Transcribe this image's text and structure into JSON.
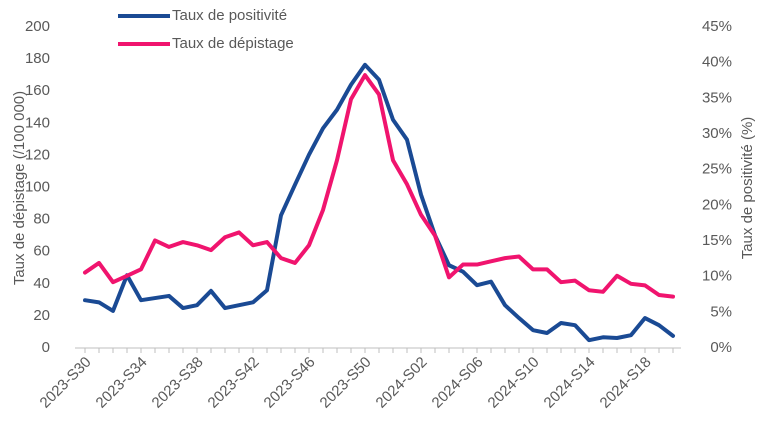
{
  "chart_data": {
    "type": "line",
    "y_label": "Taux de dépistage (/100 000)",
    "y2_label": "Taux de positivité (%)",
    "categories": [
      "2023-S30",
      null,
      null,
      null,
      "2023-S34",
      null,
      null,
      null,
      "2023-S38",
      null,
      null,
      null,
      "2023-S42",
      null,
      null,
      null,
      "2023-S46",
      null,
      null,
      null,
      "2023-S50",
      null,
      null,
      null,
      "2024-S02",
      null,
      null,
      null,
      "2024-S06",
      null,
      null,
      null,
      "2024-S10",
      null,
      null,
      null,
      "2024-S14",
      null,
      null,
      null,
      "2024-S18",
      null,
      null
    ],
    "series": [
      {
        "name": "Taux de positivité",
        "color": "#1a4a94",
        "axis": "y2",
        "values": [
          6.7,
          6.4,
          5.2,
          10.2,
          6.7,
          7.0,
          7.3,
          5.6,
          6.0,
          8.0,
          5.6,
          6.0,
          6.4,
          8.1,
          18.6,
          22.9,
          27.1,
          30.8,
          33.4,
          36.9,
          39.7,
          37.6,
          32.0,
          29.2,
          21.5,
          15.8,
          11.6,
          10.7,
          8.8,
          9.3,
          6.0,
          4.2,
          2.5,
          2.1,
          3.5,
          3.2,
          1.1,
          1.5,
          1.4,
          1.8,
          4.2,
          3.2,
          1.7
        ]
      },
      {
        "name": "Taux de dépistage",
        "color": "#f0146e",
        "values": [
          47,
          53,
          41,
          45,
          49,
          67,
          63,
          66,
          64,
          61,
          69,
          72,
          64,
          66,
          56,
          53,
          64,
          86,
          117,
          155,
          170,
          158,
          117,
          102,
          83,
          70,
          44,
          52,
          52,
          54,
          56,
          57,
          49,
          49,
          41,
          42,
          36,
          35,
          45,
          40,
          39,
          33,
          32
        ]
      }
    ],
    "ylim": [
      0,
      200
    ],
    "yticks": [
      0,
      20,
      40,
      60,
      80,
      100,
      120,
      140,
      160,
      180,
      200
    ],
    "y2lim": [
      0,
      45
    ],
    "y2ticks": [
      {
        "value": 0,
        "label": "0%"
      },
      {
        "value": 5,
        "label": "5%"
      },
      {
        "value": 10,
        "label": "10%"
      },
      {
        "value": 15,
        "label": "15%"
      },
      {
        "value": 20,
        "label": "20%"
      },
      {
        "value": 25,
        "label": "25%"
      },
      {
        "value": 30,
        "label": "30%"
      },
      {
        "value": 35,
        "label": "35%"
      },
      {
        "value": 40,
        "label": "40%"
      },
      {
        "value": 45,
        "label": "45%"
      }
    ],
    "legend": "top-left",
    "grid": false
  }
}
